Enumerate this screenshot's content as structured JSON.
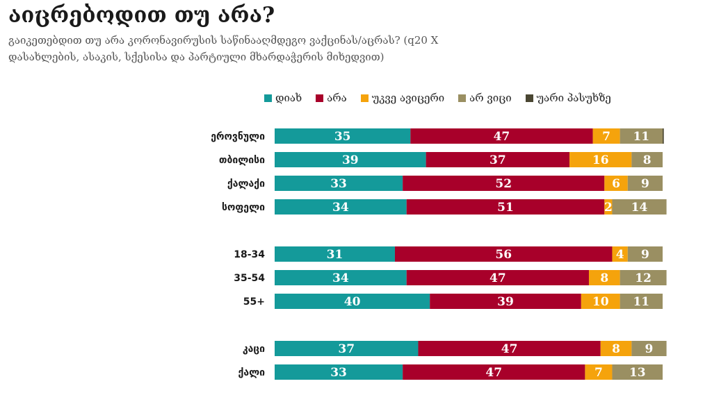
{
  "chart_data": {
    "type": "bar",
    "orientation": "horizontal",
    "stacked": true,
    "title": "აიცრებოდით თუ არა?",
    "subtitle": "გაიკეთებდით თუ არა კორონავირუსის საწინააღმდეგო ვაქცინას/აცრას? (q20 X დასახლების, ასაკის, სქესისა და პარტიული მხარდაჭერის მიხედვით)",
    "legend_position": "top",
    "grid": false,
    "xlim": [
      0,
      100
    ],
    "categories": [
      "ეროვნული",
      "თბილისი",
      "ქალაქი",
      "სოფელი",
      "18-34",
      "35-54",
      "55+",
      "კაცი",
      "ქალი"
    ],
    "groups": [
      [
        0,
        1,
        2,
        3
      ],
      [
        4,
        5,
        6
      ],
      [
        7,
        8
      ]
    ],
    "series": [
      {
        "name": "დიახ",
        "color": "#149a9a",
        "values": [
          35,
          39,
          33,
          34,
          31,
          34,
          40,
          37,
          33
        ]
      },
      {
        "name": "არა",
        "color": "#a8002a",
        "values": [
          47,
          37,
          52,
          51,
          56,
          47,
          39,
          47,
          47
        ]
      },
      {
        "name": "უკვე ავიცერი",
        "color": "#f5a30c",
        "values": [
          7,
          16,
          6,
          2,
          4,
          8,
          10,
          8,
          7
        ]
      },
      {
        "name": "არ ვიცი",
        "color": "#9a8f62",
        "values": [
          11,
          8,
          9,
          14,
          9,
          12,
          11,
          9,
          13
        ]
      },
      {
        "name": "უარი პასუხზე",
        "color": "#4a4632",
        "values": [
          0.3,
          0,
          0,
          0,
          0,
          0,
          0,
          0,
          0
        ]
      }
    ]
  }
}
